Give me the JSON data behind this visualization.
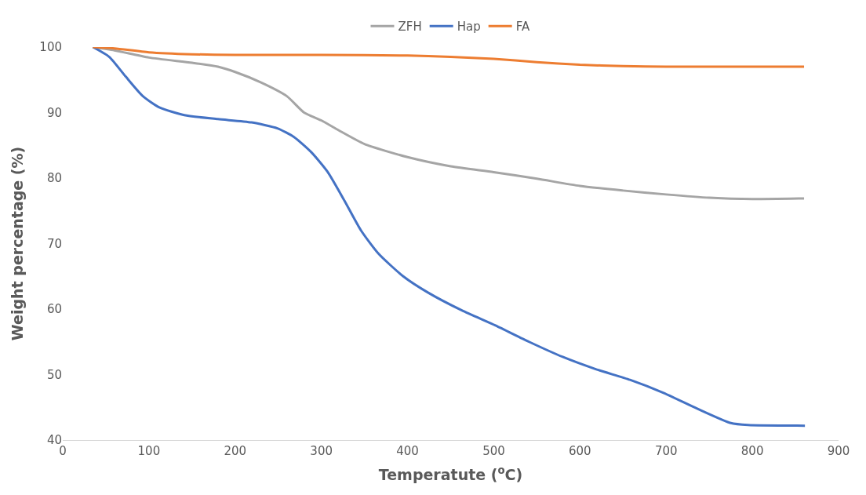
{
  "chart_data": {
    "type": "line",
    "xlabel": "Temperatute ($^{o}$C)",
    "ylabel": "Weight percentage (%)",
    "xlim": [
      0,
      900
    ],
    "xticks": [
      0,
      100,
      200,
      300,
      400,
      500,
      600,
      700,
      800,
      900
    ],
    "ylim": [
      40,
      100
    ],
    "yticks": [
      40,
      50,
      60,
      70,
      80,
      90,
      100
    ],
    "grid": false,
    "legend": "top",
    "marker": "none",
    "line_style": "solid",
    "series": [
      {
        "name": "ZFH",
        "color": "#a5a5a5",
        "x": [
          35,
          60,
          100,
          150,
          180,
          200,
          230,
          260,
          280,
          300,
          320,
          350,
          400,
          450,
          500,
          550,
          600,
          650,
          700,
          750,
          800,
          860
        ],
        "values": [
          100,
          99.5,
          98.4,
          97.6,
          97,
          96.2,
          94.6,
          92.5,
          90,
          88.8,
          87.3,
          85.2,
          83.2,
          81.8,
          80.9,
          79.9,
          78.8,
          78.1,
          77.5,
          77,
          76.8,
          76.9
        ]
      },
      {
        "name": "Hap",
        "color": "#4472c4",
        "x": [
          35,
          54,
          73,
          93,
          112,
          141,
          180,
          219,
          249,
          268,
          288,
          307,
          327,
          346,
          366,
          395,
          424,
          463,
          502,
          541,
          580,
          619,
          658,
          697,
          736,
          775,
          795,
          861
        ],
        "values": [
          100,
          98.5,
          95.5,
          92.5,
          90.8,
          89.6,
          89,
          88.5,
          87.6,
          86.3,
          84,
          81,
          76.5,
          72,
          68.5,
          65,
          62.5,
          59.8,
          57.5,
          55,
          52.7,
          50.8,
          49.2,
          47.2,
          44.8,
          42.6,
          42.3,
          42.2
        ]
      },
      {
        "name": "FA",
        "color": "#ed7d31",
        "x": [
          35,
          60,
          100,
          150,
          200,
          300,
          400,
          450,
          500,
          550,
          600,
          650,
          700,
          800,
          860
        ],
        "values": [
          100,
          99.8,
          99.2,
          98.9,
          98.8,
          98.8,
          98.7,
          98.5,
          98.2,
          97.7,
          97.3,
          97.1,
          97,
          97,
          97
        ]
      }
    ]
  }
}
